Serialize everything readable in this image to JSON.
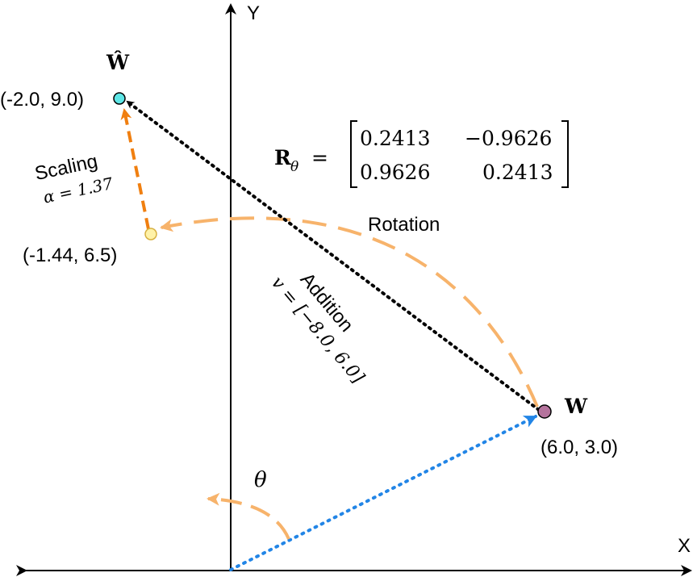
{
  "axes": {
    "x_label": "X",
    "y_label": "Y"
  },
  "points": {
    "w": {
      "label": "W",
      "coords": "(6.0, 3.0)"
    },
    "rotated": {
      "coords": "(-1.44, 6.5)"
    },
    "w_hat": {
      "label": "Ŵ",
      "coords": "(-2.0, 9.0)"
    }
  },
  "operations": {
    "rotation": "Rotation",
    "scaling": "Scaling",
    "scaling_param": "α = 1.37",
    "addition": "Addition",
    "addition_param": "v = [−8.0, 6.0]",
    "theta": "θ"
  },
  "matrix": {
    "lhs": "R",
    "lhs_sub": "θ",
    "equals": "=",
    "r1c1": "0.2413",
    "r1c2": "−0.9626",
    "r2c1": "0.9626",
    "r2c2": "0.2413"
  },
  "colors": {
    "orange_light": "#F7B36B",
    "orange_dark": "#F07F10",
    "blue": "#2285E6",
    "black": "#000000",
    "w_point": "#B5739D",
    "w_hat_point": "#5EE6E6",
    "rotated_point": "#FFF2A8"
  }
}
